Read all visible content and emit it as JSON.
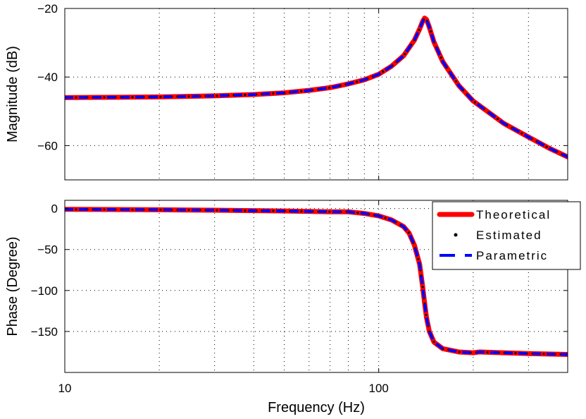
{
  "chart_data": [
    {
      "type": "line",
      "xlabel": "",
      "ylabel": "Magnitude (dB)",
      "xscale": "log",
      "xlim": [
        10,
        400
      ],
      "ylim": [
        -70,
        -20
      ],
      "xticks": [
        10,
        100
      ],
      "xtick_labels": [
        "",
        ""
      ],
      "yticks": [
        -20,
        -40,
        -60
      ],
      "ytick_labels": [
        "−20",
        "−40",
        "−60"
      ],
      "grid": true,
      "x": [
        10,
        15,
        20,
        30,
        40,
        50,
        60,
        70,
        80,
        90,
        100,
        110,
        120,
        130,
        135,
        138,
        140,
        142,
        145,
        150,
        160,
        180,
        200,
        250,
        300,
        350,
        400
      ],
      "series": [
        {
          "name": "Theoretical",
          "color": "#ff0000",
          "style": "solid",
          "values": [
            -46.0,
            -45.9,
            -45.8,
            -45.5,
            -45.1,
            -44.6,
            -43.9,
            -43.1,
            -42.0,
            -40.8,
            -39.2,
            -36.8,
            -33.8,
            -29.2,
            -26.0,
            -23.8,
            -22.8,
            -23.2,
            -25.5,
            -29.8,
            -35.5,
            -42.5,
            -47.0,
            -53.5,
            -57.5,
            -60.8,
            -63.3
          ]
        },
        {
          "name": "Estimated",
          "color": "#000000",
          "style": "dotted",
          "values": [
            -46.0,
            -45.9,
            -45.8,
            -45.5,
            -45.1,
            -44.6,
            -43.9,
            -43.1,
            -42.0,
            -40.8,
            -39.2,
            -36.8,
            -33.8,
            -29.2,
            -26.0,
            -23.8,
            -22.8,
            -23.2,
            -25.5,
            -29.8,
            -35.5,
            -42.5,
            -47.0,
            -53.5,
            -57.5,
            -60.8,
            -63.3
          ]
        },
        {
          "name": "Parametric",
          "color": "#0000ff",
          "style": "dashed",
          "values": [
            -46.0,
            -45.9,
            -45.8,
            -45.5,
            -45.1,
            -44.6,
            -43.9,
            -43.1,
            -42.0,
            -40.8,
            -39.2,
            -36.8,
            -33.8,
            -29.2,
            -26.0,
            -23.8,
            -22.8,
            -23.2,
            -25.5,
            -29.8,
            -35.5,
            -42.5,
            -47.0,
            -53.5,
            -57.5,
            -60.8,
            -63.3
          ]
        }
      ]
    },
    {
      "type": "line",
      "xlabel": "Frequency (Hz)",
      "ylabel": "Phase (Degree)",
      "xscale": "log",
      "xlim": [
        10,
        400
      ],
      "ylim": [
        -200,
        10
      ],
      "xticks": [
        10,
        100
      ],
      "xtick_labels": [
        "10",
        "100"
      ],
      "yticks": [
        0,
        -50,
        -100,
        -150
      ],
      "ytick_labels": [
        "0",
        "−50",
        "−100",
        "−150"
      ],
      "grid": true,
      "legend": {
        "position": "top-right",
        "entries": [
          "Theoretical",
          "Estimated",
          "Parametric"
        ]
      },
      "x": [
        10,
        20,
        30,
        50,
        70,
        80,
        90,
        100,
        110,
        120,
        125,
        130,
        135,
        138,
        140,
        142,
        145,
        150,
        160,
        180,
        200,
        210,
        250,
        300,
        400
      ],
      "series": [
        {
          "name": "Theoretical",
          "color": "#ff0000",
          "style": "solid",
          "values": [
            -1,
            -1.5,
            -2,
            -3,
            -4,
            -4,
            -6,
            -9,
            -14,
            -22,
            -30,
            -45,
            -68,
            -95,
            -115,
            -133,
            -150,
            -163,
            -171,
            -175,
            -176,
            -175,
            -176,
            -177,
            -178
          ]
        },
        {
          "name": "Estimated",
          "color": "#000000",
          "style": "dotted",
          "values": [
            -1,
            -1.5,
            -2,
            -3,
            -4,
            -4,
            -6,
            -9,
            -14,
            -22,
            -30,
            -45,
            -68,
            -95,
            -115,
            -133,
            -150,
            -163,
            -171,
            -175,
            -176,
            -175,
            -176,
            -177,
            -178
          ]
        },
        {
          "name": "Parametric",
          "color": "#0000ff",
          "style": "dashed",
          "values": [
            -1,
            -1.5,
            -2,
            -3,
            -4,
            -4,
            -6,
            -9,
            -14,
            -22,
            -30,
            -45,
            -68,
            -95,
            -115,
            -133,
            -150,
            -163,
            -171,
            -175,
            -176,
            -175,
            -176,
            -177,
            -178
          ]
        }
      ]
    }
  ]
}
